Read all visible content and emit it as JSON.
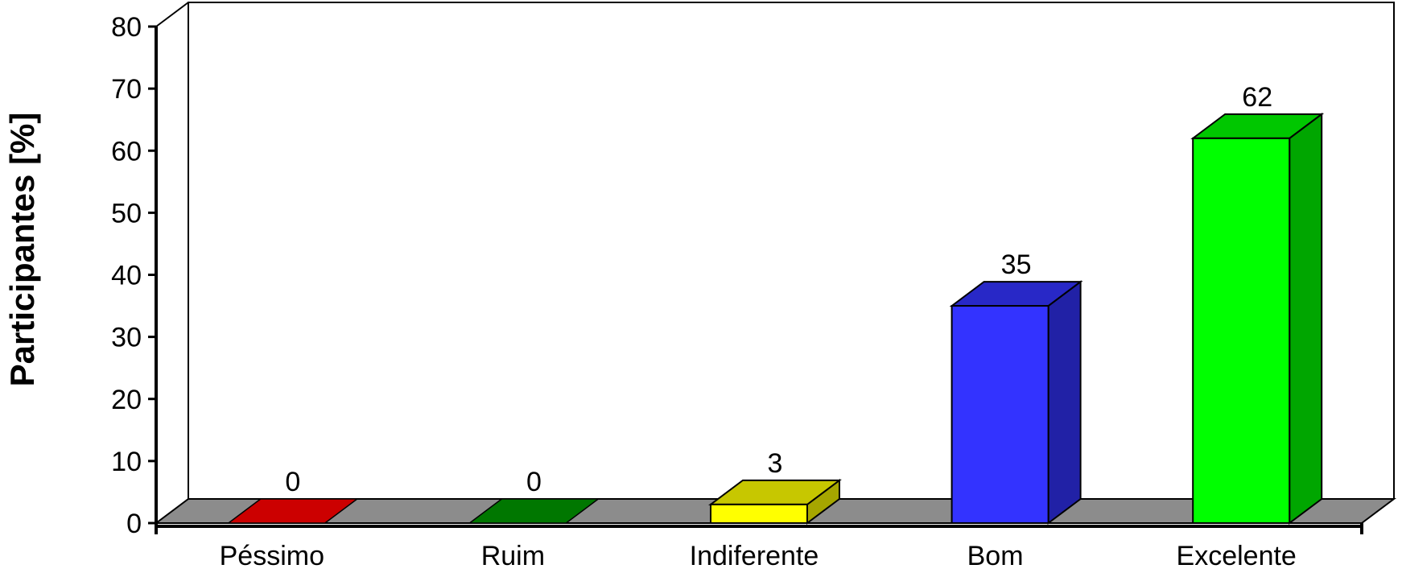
{
  "chart_data": {
    "type": "bar",
    "categories": [
      "Péssimo",
      "Ruim",
      "Indiferente",
      "Bom",
      "Excelente"
    ],
    "values": [
      0,
      0,
      3,
      35,
      62
    ],
    "data_labels": [
      "0",
      "0",
      "3",
      "35",
      "62"
    ],
    "bar_colors": [
      "#cc0000",
      "#007700",
      "#ffff00",
      "#3333ff",
      "#00ff00"
    ],
    "title": "",
    "xlabel": "",
    "ylabel": "Participantes [%]",
    "ylim": [
      0,
      80
    ],
    "yticks": [
      0,
      10,
      20,
      30,
      40,
      50,
      60,
      70,
      80
    ],
    "ytick_labels": [
      "0",
      "10",
      "20",
      "30",
      "40",
      "50",
      "60",
      "70",
      "80"
    ],
    "grid": false,
    "style": "3d-column",
    "floor_color": "#8c8c8c"
  }
}
